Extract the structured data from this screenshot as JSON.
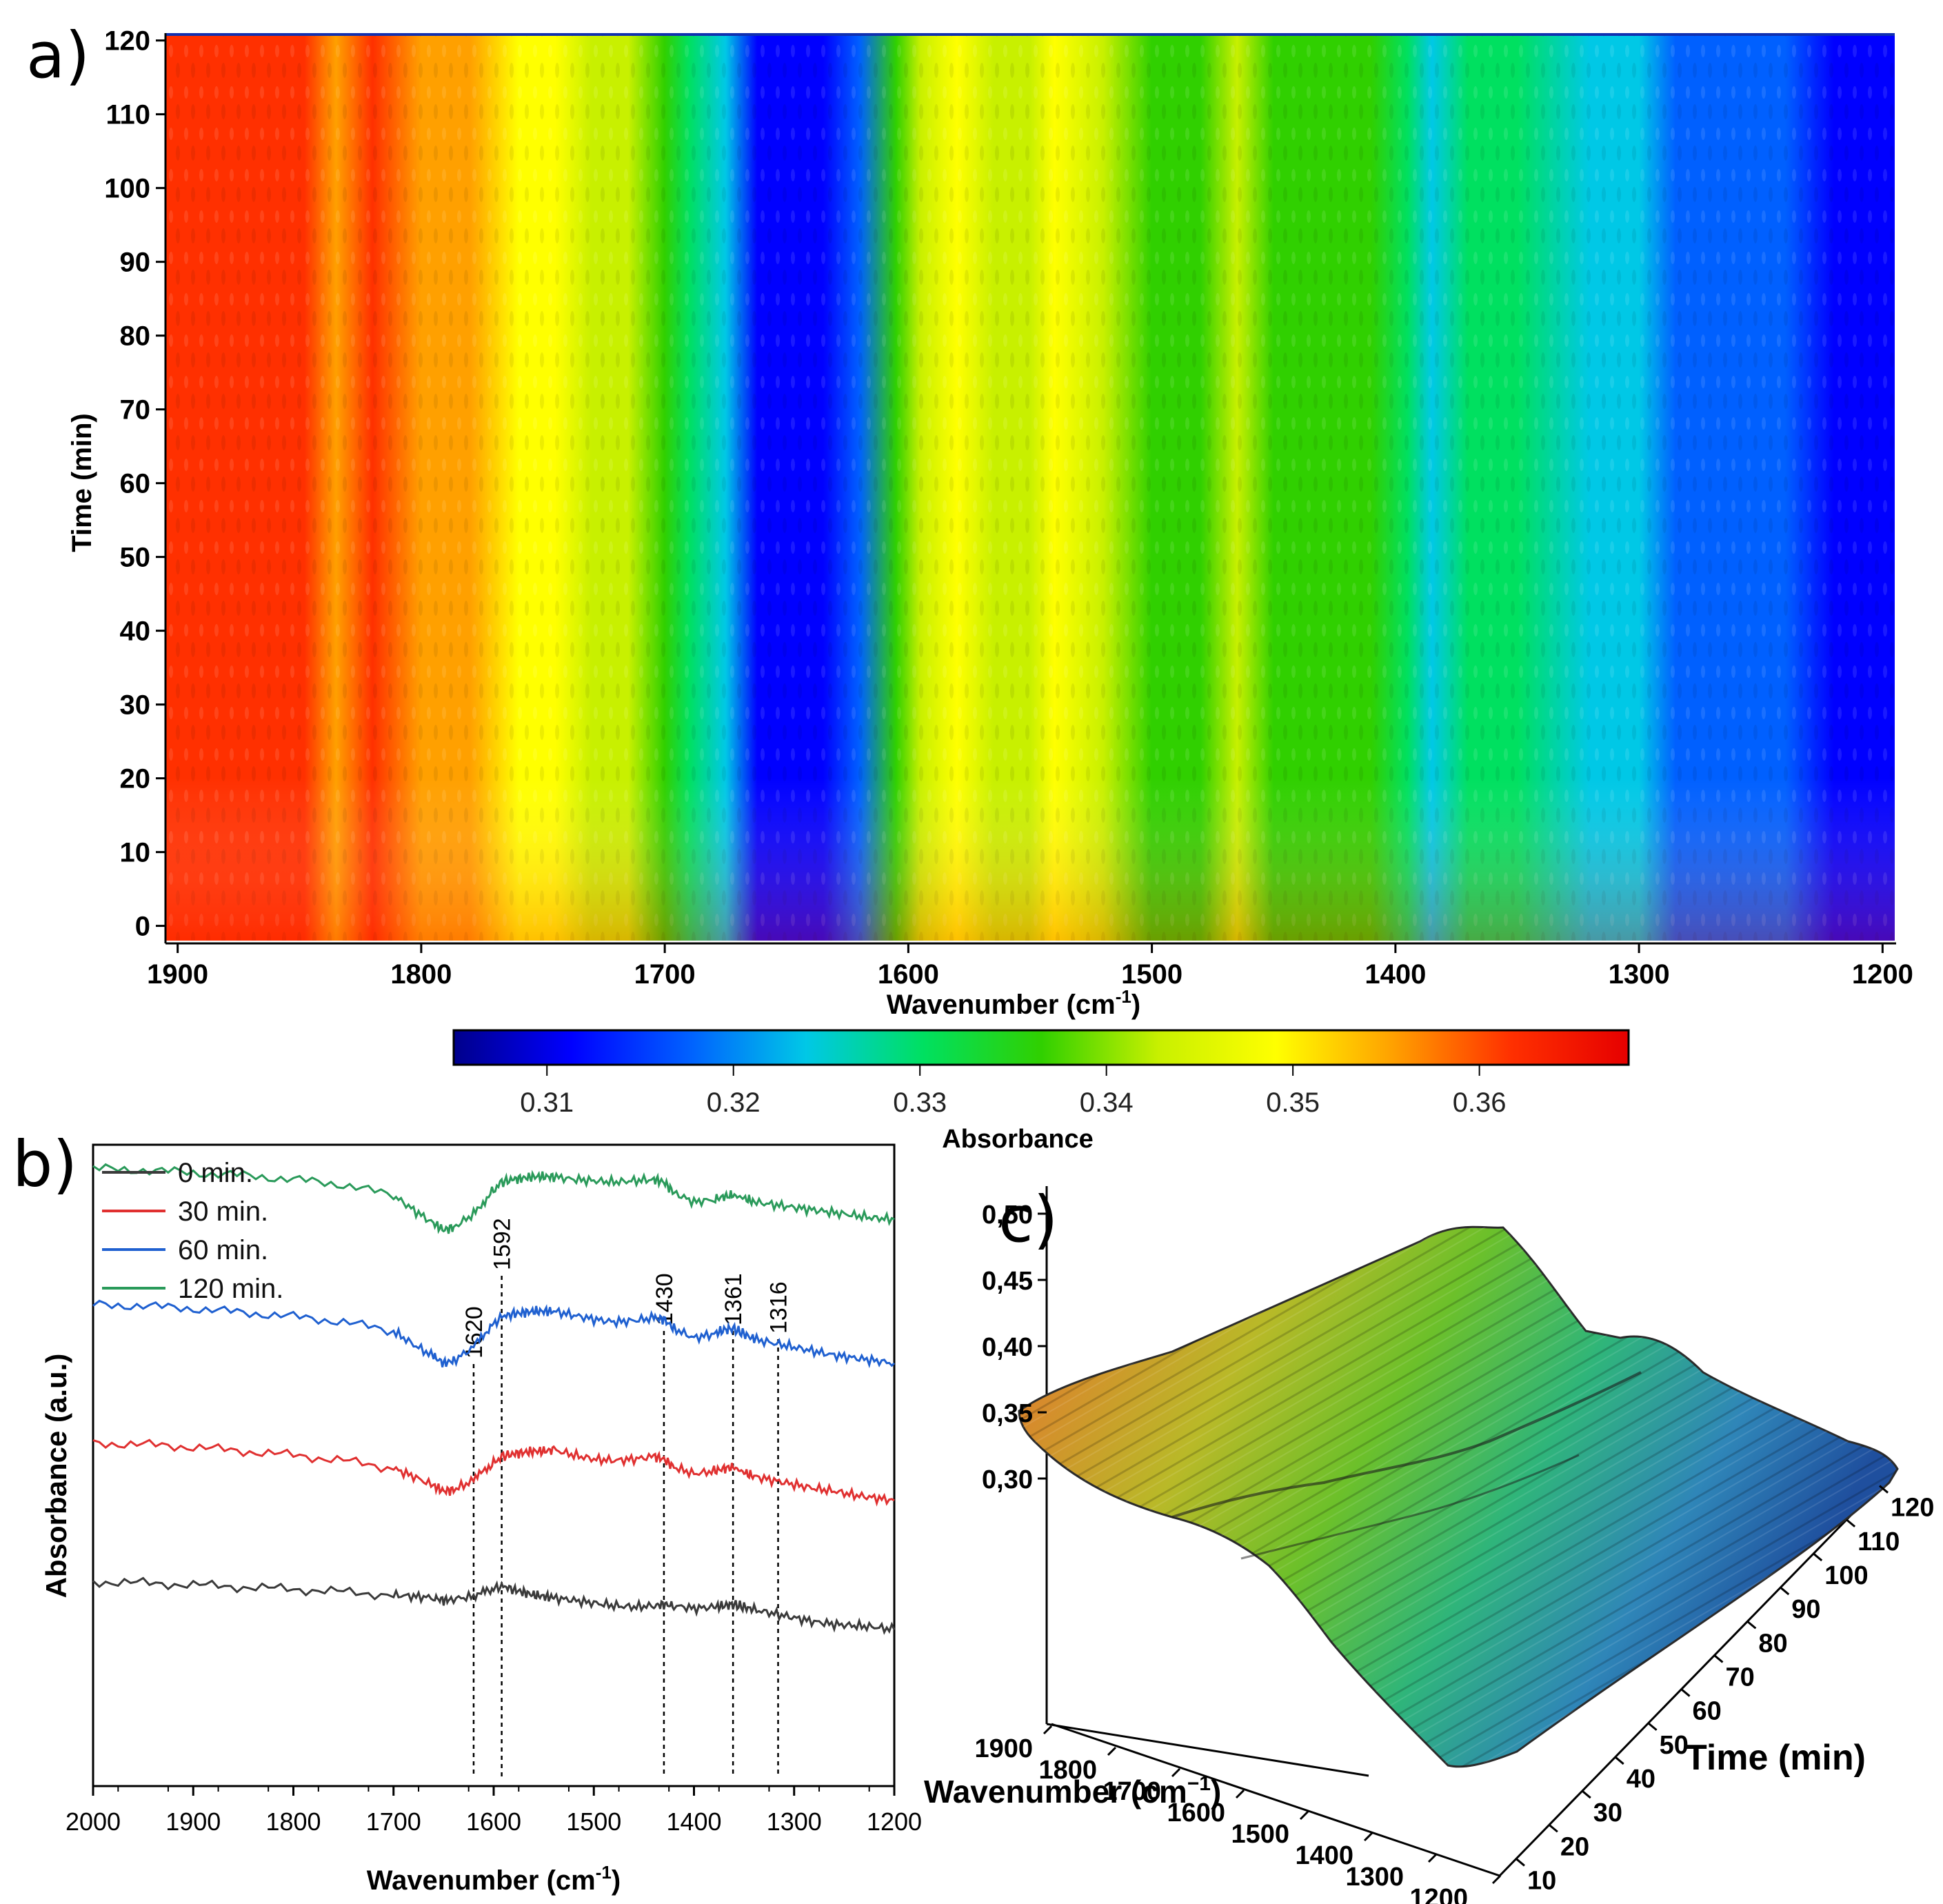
{
  "chart_data": [
    {
      "id": "a",
      "panel_label": "a)",
      "type": "heatmap",
      "xlabel": "Wavenumber (cm",
      "xlabel_sup": "-1",
      "xlabel_close": ")",
      "ylabel": "Time (min)",
      "xlim": [
        1905,
        1195
      ],
      "ylim": [
        -2,
        121
      ],
      "x_ticks": [
        "1900",
        "1800",
        "1700",
        "1600",
        "1500",
        "1400",
        "1300",
        "1200"
      ],
      "y_ticks": [
        "0",
        "10",
        "20",
        "30",
        "40",
        "50",
        "60",
        "70",
        "80",
        "90",
        "100",
        "110",
        "120"
      ],
      "colorbar": {
        "label": "Absorbance",
        "range": [
          0.305,
          0.368
        ],
        "ticks": [
          "0.31",
          "0.32",
          "0.33",
          "0.34",
          "0.35",
          "0.36"
        ],
        "colormap": [
          "#00008b",
          "#0000ff",
          "#0060ff",
          "#00c8e6",
          "#00e060",
          "#30d000",
          "#c8f000",
          "#ffff00",
          "#ffa000",
          "#ff3000",
          "#e60000"
        ]
      },
      "profile_wavenumbers": [
        1905,
        1880,
        1860,
        1848,
        1835,
        1820,
        1800,
        1780,
        1760,
        1745,
        1730,
        1715,
        1700,
        1690,
        1675,
        1662,
        1650,
        1635,
        1620,
        1605,
        1595,
        1580,
        1565,
        1550,
        1540,
        1520,
        1500,
        1480,
        1465,
        1450,
        1430,
        1410,
        1395,
        1385,
        1370,
        1350,
        1320,
        1300,
        1285,
        1260,
        1240,
        1220,
        1195
      ],
      "profile_absorbance": [
        0.362,
        0.361,
        0.36,
        0.364,
        0.358,
        0.361,
        0.356,
        0.354,
        0.352,
        0.349,
        0.343,
        0.341,
        0.335,
        0.331,
        0.323,
        0.309,
        0.313,
        0.314,
        0.318,
        0.338,
        0.34,
        0.349,
        0.344,
        0.342,
        0.347,
        0.341,
        0.339,
        0.337,
        0.34,
        0.337,
        0.334,
        0.336,
        0.329,
        0.326,
        0.33,
        0.329,
        0.327,
        0.325,
        0.316,
        0.317,
        0.315,
        0.313,
        0.312
      ]
    },
    {
      "id": "b",
      "panel_label": "b)",
      "type": "line",
      "xlabel": "Wavenumber (cm",
      "xlabel_sup": "-1",
      "xlabel_close": ")",
      "ylabel": "Absorbance (a.u.)",
      "xlim": [
        2000,
        1200
      ],
      "x_ticks": [
        "2000",
        "1900",
        "1800",
        "1700",
        "1600",
        "1500",
        "1400",
        "1300",
        "1200"
      ],
      "annotations": [
        "1620",
        "1592",
        "1430",
        "1361",
        "1316"
      ],
      "series": [
        {
          "name": "0 min.",
          "color": "#3a3a3a",
          "x": [
            2000,
            1950,
            1900,
            1850,
            1800,
            1750,
            1700,
            1680,
            1660,
            1650,
            1640,
            1620,
            1605,
            1592,
            1580,
            1570,
            1560,
            1550,
            1540,
            1520,
            1500,
            1480,
            1460,
            1440,
            1430,
            1420,
            1400,
            1380,
            1370,
            1361,
            1350,
            1340,
            1320,
            1300,
            1280,
            1260,
            1240,
            1220,
            1200
          ],
          "y": [
            0.56,
            0.555,
            0.548,
            0.54,
            0.532,
            0.522,
            0.51,
            0.505,
            0.5,
            0.49,
            0.495,
            0.505,
            0.525,
            0.545,
            0.53,
            0.52,
            0.51,
            0.505,
            0.5,
            0.49,
            0.48,
            0.47,
            0.465,
            0.47,
            0.475,
            0.47,
            0.46,
            0.465,
            0.47,
            0.475,
            0.465,
            0.455,
            0.44,
            0.425,
            0.41,
            0.4,
            0.395,
            0.39,
            0.38
          ]
        },
        {
          "name": "30 min.",
          "color": "#e03030",
          "x": [
            2000,
            1950,
            1900,
            1850,
            1800,
            1750,
            1700,
            1680,
            1660,
            1650,
            1640,
            1620,
            1605,
            1592,
            1580,
            1570,
            1560,
            1550,
            1540,
            1520,
            1500,
            1480,
            1460,
            1440,
            1430,
            1420,
            1400,
            1380,
            1370,
            1361,
            1350,
            1340,
            1320,
            1300,
            1280,
            1260,
            1240,
            1220,
            1200
          ],
          "y": [
            1.08,
            1.075,
            1.065,
            1.05,
            1.035,
            1.015,
            0.985,
            0.955,
            0.92,
            0.9,
            0.905,
            0.94,
            0.99,
            1.03,
            1.04,
            1.045,
            1.05,
            1.05,
            1.055,
            1.035,
            1.02,
            1.015,
            1.02,
            1.03,
            1.02,
            0.99,
            0.965,
            0.975,
            0.985,
            0.99,
            0.97,
            0.955,
            0.94,
            0.925,
            0.91,
            0.9,
            0.885,
            0.875,
            0.865
          ]
        },
        {
          "name": "60 min.",
          "color": "#1f60d0",
          "x": [
            2000,
            1950,
            1900,
            1850,
            1800,
            1750,
            1700,
            1680,
            1660,
            1650,
            1640,
            1620,
            1605,
            1592,
            1580,
            1570,
            1560,
            1550,
            1540,
            1520,
            1500,
            1480,
            1460,
            1440,
            1430,
            1420,
            1400,
            1380,
            1370,
            1361,
            1350,
            1340,
            1320,
            1300,
            1280,
            1260,
            1240,
            1220,
            1200
          ],
          "y": [
            1.6,
            1.595,
            1.585,
            1.57,
            1.555,
            1.535,
            1.5,
            1.45,
            1.405,
            1.38,
            1.39,
            1.44,
            1.51,
            1.555,
            1.565,
            1.57,
            1.575,
            1.575,
            1.575,
            1.56,
            1.545,
            1.535,
            1.54,
            1.55,
            1.545,
            1.51,
            1.475,
            1.49,
            1.505,
            1.51,
            1.49,
            1.47,
            1.455,
            1.44,
            1.425,
            1.41,
            1.4,
            1.39,
            1.38
          ]
        },
        {
          "name": "120 min.",
          "color": "#2a9a5a",
          "x": [
            2000,
            1950,
            1900,
            1850,
            1800,
            1750,
            1700,
            1680,
            1660,
            1650,
            1640,
            1620,
            1605,
            1592,
            1580,
            1570,
            1560,
            1550,
            1540,
            1520,
            1500,
            1480,
            1460,
            1440,
            1430,
            1420,
            1400,
            1380,
            1370,
            1361,
            1350,
            1340,
            1320,
            1300,
            1280,
            1260,
            1240,
            1220,
            1200
          ],
          "y": [
            2.11,
            2.105,
            2.095,
            2.085,
            2.07,
            2.05,
            2.01,
            1.955,
            1.905,
            1.88,
            1.89,
            1.94,
            2.01,
            2.06,
            2.07,
            2.075,
            2.08,
            2.08,
            2.08,
            2.07,
            2.065,
            2.06,
            2.065,
            2.07,
            2.06,
            2.02,
            1.985,
            1.995,
            2.005,
            2.01,
            2.0,
            1.985,
            1.975,
            1.965,
            1.955,
            1.945,
            1.935,
            1.925,
            1.92
          ]
        }
      ]
    },
    {
      "id": "c",
      "panel_label": "c)",
      "type": "area",
      "xlabel": "Wavenumber (cm",
      "xlabel_sup": "−1",
      "xlabel_close": ")",
      "ylabel": "Time (min)",
      "z_ticks": [
        "0,50",
        "0,45",
        "0,40",
        "0,35",
        "0,30"
      ],
      "wavenumber_ticks": [
        "1900",
        "1800",
        "1700",
        "1600",
        "1500",
        "1400",
        "1300",
        "1200"
      ],
      "time_ticks": [
        "10",
        "20",
        "30",
        "40",
        "50",
        "60",
        "70",
        "80",
        "90",
        "100",
        "110",
        "120"
      ]
    }
  ]
}
